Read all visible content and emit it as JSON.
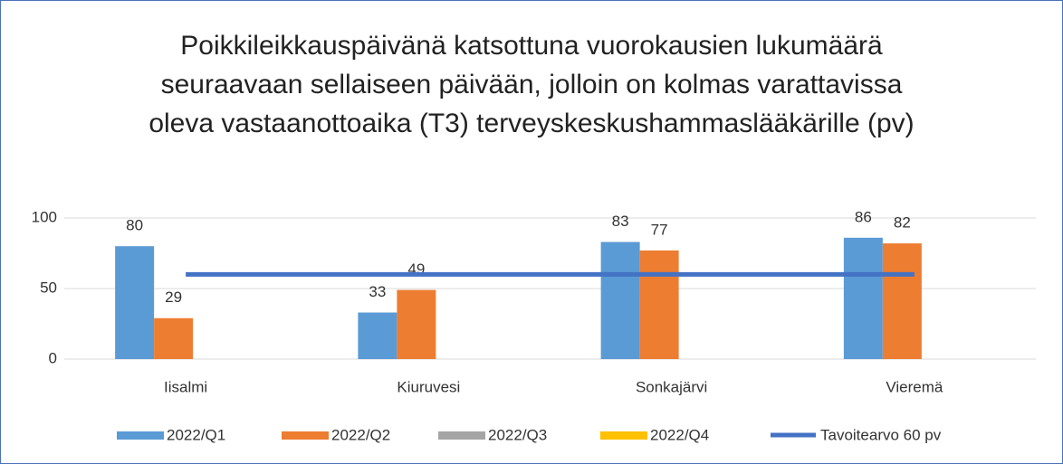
{
  "chart_data": {
    "type": "bar",
    "title": "Poikkileikkauspäivänä katsottuna vuorokausien lukumäärä seuraavaan sellaiseen päivään, jolloin on kolmas varattavissa oleva vastaanottoaika (T3) terveyskeskushammaslääkärille (pv)",
    "categories": [
      "Iisalmi",
      "Kiuruvesi",
      "Sonkajärvi",
      "Vieremä"
    ],
    "series": [
      {
        "name": "2022/Q1",
        "color": "#5b9bd5",
        "values": [
          80,
          33,
          83,
          86
        ]
      },
      {
        "name": "2022/Q2",
        "color": "#ed7d31",
        "values": [
          29,
          49,
          77,
          82
        ]
      },
      {
        "name": "2022/Q3",
        "color": "#a5a5a5",
        "values": [
          null,
          null,
          null,
          null
        ]
      },
      {
        "name": "2022/Q4",
        "color": "#ffc000",
        "values": [
          null,
          null,
          null,
          null
        ]
      },
      {
        "name": "Tavoitearvo 60 pv",
        "color": "#4472c4",
        "type": "line",
        "values": [
          60,
          60,
          60,
          60
        ]
      }
    ],
    "ylim": [
      0,
      100
    ],
    "yticks": [
      0,
      50,
      100
    ],
    "grid": true,
    "legend": "bottom"
  }
}
